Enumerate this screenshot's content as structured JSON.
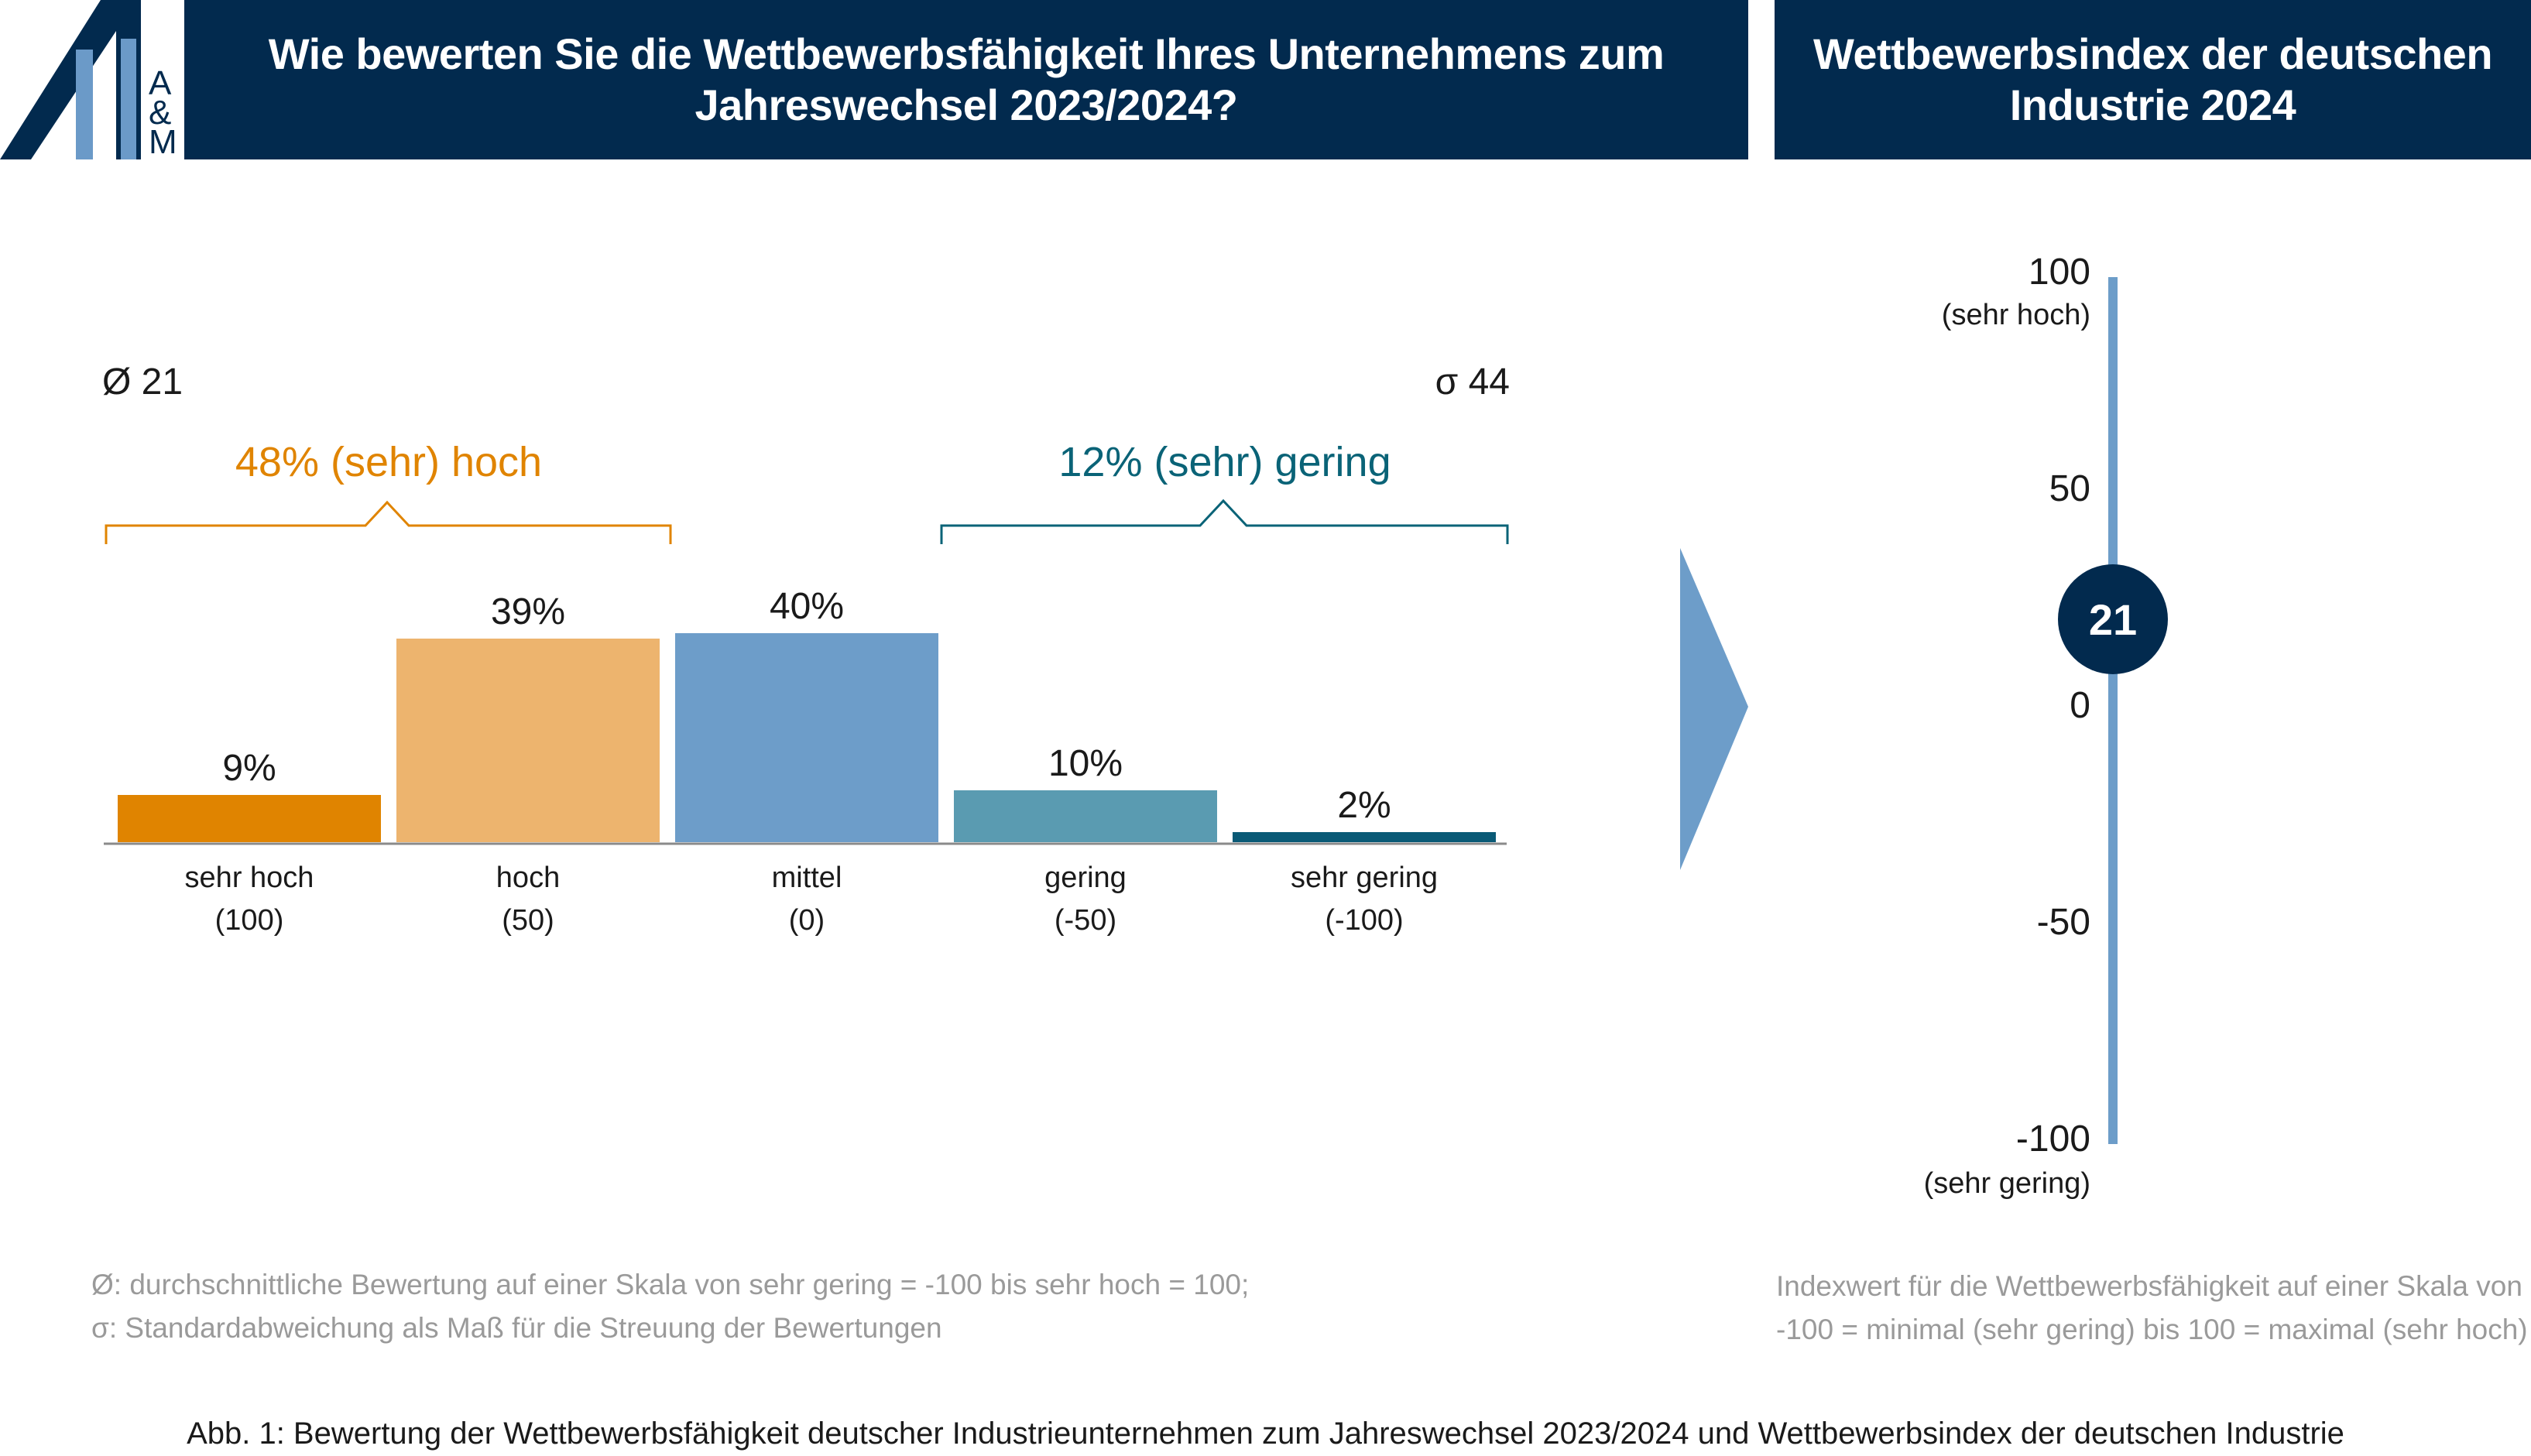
{
  "logo": {
    "line1": "A",
    "line2": "&",
    "line3": "M",
    "colors": [
      "#022a4e",
      "#6b9ac8"
    ]
  },
  "header": {
    "left_title_line1": "Wie bewerten Sie die Wettbewerbsfähigkeit Ihres Unternehmens zum",
    "left_title_line2": "Jahreswechsel 2023/2024?",
    "right_title_line1": "Wettbewerbsindex der deutschen",
    "right_title_line2": "Industrie 2024"
  },
  "stats": {
    "mean": "Ø 21",
    "sigma": "σ 44"
  },
  "brackets": {
    "high_label": "48% (sehr) hoch",
    "high_color": "#e08400",
    "low_label": "12% (sehr) gering",
    "low_color": "#0a6377"
  },
  "chart_data": [
    {
      "type": "bar",
      "title": "Wie bewerten Sie die Wettbewerbsfähigkeit Ihres Unternehmens zum Jahreswechsel 2023/2024?",
      "categories": [
        "sehr hoch",
        "hoch",
        "mittel",
        "gering",
        "sehr gering"
      ],
      "scale_values": [
        "(100)",
        "(50)",
        "(0)",
        "(-50)",
        "(-100)"
      ],
      "values": [
        9,
        39,
        40,
        10,
        2
      ],
      "value_labels": [
        "9%",
        "39%",
        "40%",
        "10%",
        "2%"
      ],
      "colors": [
        "#e08400",
        "#edb46e",
        "#6d9dc9",
        "#5a9bb1",
        "#0a5a76"
      ],
      "ylim": [
        0,
        40
      ],
      "xlabel": "",
      "ylabel": ""
    },
    {
      "type": "index-scale",
      "title": "Wettbewerbsindex der deutschen Industrie 2024",
      "ylim": [
        -100,
        100
      ],
      "ticks": [
        100,
        50,
        0,
        -50,
        -100
      ],
      "tick_labels": [
        "100",
        "50",
        "0",
        "-50",
        "-100"
      ],
      "top_sublabel": "(sehr hoch)",
      "bottom_sublabel": "(sehr gering)",
      "value": 21,
      "value_label": "21",
      "axis_color": "#6d9dc9",
      "marker_color": "#022a4e"
    }
  ],
  "arrow_color": "#6d9dc9",
  "notes": {
    "left_line1": "Ø: durchschnittliche Bewertung auf einer Skala von sehr gering = -100 bis sehr hoch = 100;",
    "left_line2": "σ: Standardabweichung als Maß für die Streuung der Bewertungen",
    "right_line1": "Indexwert für die Wettbewerbsfähigkeit auf einer Skala von",
    "right_line2": "-100 = minimal (sehr gering) bis 100 = maximal (sehr hoch)"
  },
  "caption": "Abb. 1: Bewertung der Wettbewerbsfähigkeit deutscher Industrieunternehmen zum Jahreswechsel 2023/2024 und Wettbewerbsindex der deutschen Industrie"
}
